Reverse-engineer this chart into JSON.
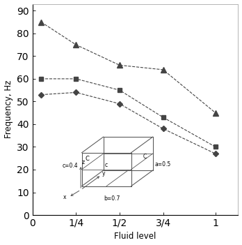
{
  "x_values": [
    0.05,
    0.25,
    0.5,
    0.75,
    1.05
  ],
  "series_triangle": [
    85,
    75,
    66,
    64,
    45
  ],
  "series_square": [
    60,
    60,
    55,
    43,
    30
  ],
  "series_diamond": [
    53,
    54,
    49,
    38,
    27
  ],
  "x_ticks": [
    0,
    0.25,
    0.5,
    0.75,
    1.05
  ],
  "x_tick_labels": [
    "0",
    "1/4",
    "1/2",
    "3/4",
    "1"
  ],
  "y_ticks": [
    0,
    10,
    20,
    30,
    40,
    50,
    60,
    70,
    80,
    90
  ],
  "ylim": [
    0,
    93
  ],
  "xlim": [
    0,
    1.18
  ],
  "xlabel": "Fluid level",
  "ylabel": "Frequency, Hz",
  "line_color": "#444444",
  "marker_size": 5,
  "figsize": [
    3.48,
    3.51
  ],
  "dpi": 100
}
